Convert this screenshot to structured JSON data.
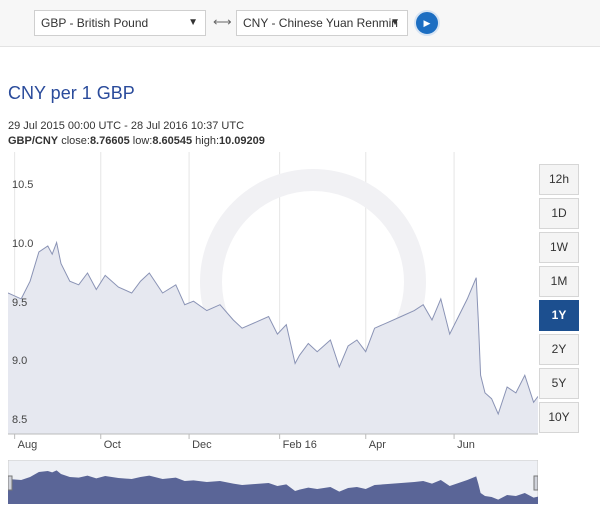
{
  "converter": {
    "from_currency": "GBP - British Pound",
    "to_currency": "CNY - Chinese Yuan Renmin",
    "swap_symbol": "⟷",
    "go_symbol": "▶"
  },
  "chart_title": "CNY per 1 GBP",
  "range_text": "29 Jul 2015 00:00 UTC - 28 Jul 2016 10:37 UTC",
  "stats": {
    "pair": "GBP/CNY",
    "close_label": "close:",
    "close": "8.76605",
    "low_label": "low:",
    "low": "8.60545",
    "high_label": "high:",
    "high": "10.09209"
  },
  "periods": [
    {
      "label": "12h",
      "active": false
    },
    {
      "label": "1D",
      "active": false
    },
    {
      "label": "1W",
      "active": false
    },
    {
      "label": "1M",
      "active": false
    },
    {
      "label": "1Y",
      "active": true
    },
    {
      "label": "2Y",
      "active": false
    },
    {
      "label": "5Y",
      "active": false
    },
    {
      "label": "10Y",
      "active": false
    }
  ],
  "colors": {
    "line": "#8a93b5",
    "fill": "#e6e8f0",
    "nav_fill": "#5a6597",
    "active": "#1c4f8f"
  },
  "chart_data": {
    "type": "area",
    "ylim": [
      8.45,
      10.85
    ],
    "yticks": [
      "10.5",
      "10.0",
      "9.5",
      "9.0",
      "8.5"
    ],
    "ytick_values": [
      10.5,
      10.0,
      9.5,
      9.0,
      8.5
    ],
    "xticks": [
      "Aug",
      "Oct",
      "Dec",
      "Feb 16",
      "Apr",
      "Jun"
    ],
    "xtick_months": [
      0.15,
      2.1,
      4.1,
      6.15,
      8.1,
      10.1
    ],
    "x_months": [
      0.0,
      0.3,
      0.5,
      0.7,
      0.9,
      1.0,
      1.1,
      1.2,
      1.4,
      1.6,
      1.8,
      2.0,
      2.2,
      2.5,
      2.8,
      3.0,
      3.2,
      3.5,
      3.8,
      4.0,
      4.2,
      4.5,
      4.8,
      5.1,
      5.3,
      5.6,
      5.9,
      6.1,
      6.3,
      6.5,
      6.6,
      6.8,
      7.0,
      7.3,
      7.5,
      7.7,
      7.9,
      8.1,
      8.3,
      8.6,
      8.9,
      9.2,
      9.4,
      9.6,
      9.8,
      10.0,
      10.2,
      10.4,
      10.6,
      10.65,
      10.7,
      10.8,
      10.95,
      11.1,
      11.3,
      11.5,
      11.7,
      11.9,
      12.0
    ],
    "values": [
      9.65,
      9.6,
      9.75,
      10.0,
      10.05,
      9.98,
      10.08,
      9.9,
      9.75,
      9.72,
      9.82,
      9.68,
      9.8,
      9.7,
      9.65,
      9.75,
      9.82,
      9.65,
      9.72,
      9.55,
      9.58,
      9.5,
      9.55,
      9.42,
      9.35,
      9.4,
      9.45,
      9.3,
      9.38,
      9.05,
      9.12,
      9.22,
      9.15,
      9.25,
      9.02,
      9.2,
      9.25,
      9.15,
      9.35,
      9.4,
      9.45,
      9.5,
      9.55,
      9.42,
      9.6,
      9.3,
      9.45,
      9.6,
      9.78,
      9.4,
      8.95,
      8.8,
      8.75,
      8.62,
      8.85,
      8.8,
      8.95,
      8.72,
      8.77
    ]
  }
}
